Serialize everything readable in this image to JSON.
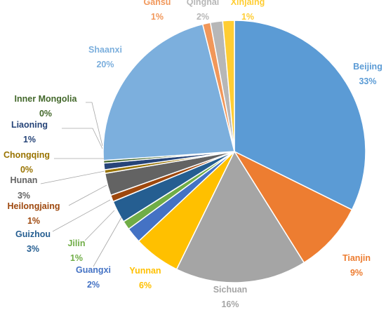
{
  "chart_data": {
    "type": "pie",
    "title": "",
    "slices": [
      {
        "label": "Beijing",
        "value": 33,
        "pct_label": "33%",
        "color": "#5B9BD5"
      },
      {
        "label": "Tianjin",
        "value": 9,
        "pct_label": "9%",
        "color": "#ED7D31"
      },
      {
        "label": "Sichuan",
        "value": 16,
        "pct_label": "16%",
        "color": "#A5A5A5"
      },
      {
        "label": "Yunnan",
        "value": 6,
        "pct_label": "6%",
        "color": "#FFC000"
      },
      {
        "label": "Guangxi",
        "value": 2,
        "pct_label": "2%",
        "color": "#4472C4"
      },
      {
        "label": "Jilin",
        "value": 1,
        "pct_label": "1%",
        "color": "#70AD47"
      },
      {
        "label": "Guizhou",
        "value": 3,
        "pct_label": "3%",
        "color": "#255E91"
      },
      {
        "label": "Heilongjaing",
        "value": 1,
        "pct_label": "1%",
        "color": "#9E480E"
      },
      {
        "label": "Hunan",
        "value": 3,
        "pct_label": "3%",
        "color": "#636363"
      },
      {
        "label": "Chongqing",
        "value": 0,
        "pct_label": "0%",
        "color": "#997300"
      },
      {
        "label": "Liaoning",
        "value": 1,
        "pct_label": "1%",
        "color": "#264478"
      },
      {
        "label": "Inner Mongolia",
        "value": 0,
        "pct_label": "0%",
        "color": "#43682B"
      },
      {
        "label": "Shaanxi",
        "value": 20,
        "pct_label": "20%",
        "color": "#7CAFDD"
      },
      {
        "label": "Gansu",
        "value": 1,
        "pct_label": "1%",
        "color": "#F1975A"
      },
      {
        "label": "Qinghai",
        "value": 2,
        "pct_label": "2%",
        "color": "#B7B7B7"
      },
      {
        "label": "Xinjaing",
        "value": 1,
        "pct_label": "1%",
        "color": "#FFCD33"
      }
    ]
  }
}
